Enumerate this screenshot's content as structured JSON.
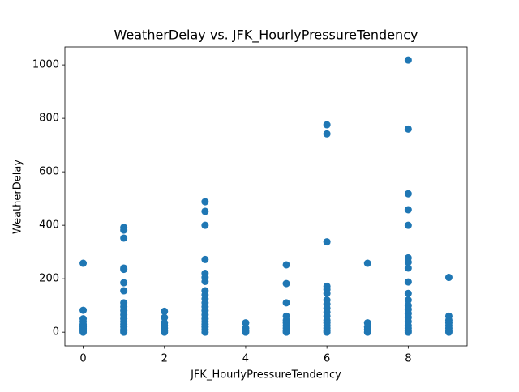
{
  "chart_data": {
    "type": "scatter",
    "title": "WeatherDelay vs. JFK_HourlyPressureTendency",
    "xlabel": "JFK_HourlyPressureTendency",
    "ylabel": "WeatherDelay",
    "color": "#1f77b4",
    "x": [
      0,
      0,
      0,
      0,
      0,
      0,
      0,
      0,
      0,
      0,
      0,
      1,
      1,
      1,
      1,
      1,
      1,
      1,
      1,
      1,
      1,
      1,
      1,
      1,
      1,
      1,
      1,
      1,
      1,
      2,
      2,
      2,
      2,
      2,
      2,
      2,
      3,
      3,
      3,
      3,
      3,
      3,
      3,
      3,
      3,
      3,
      3,
      3,
      3,
      3,
      3,
      3,
      3,
      3,
      3,
      3,
      4,
      4,
      4,
      4,
      5,
      5,
      5,
      5,
      5,
      5,
      5,
      5,
      5,
      5,
      6,
      6,
      6,
      6,
      6,
      6,
      6,
      6,
      6,
      6,
      6,
      6,
      6,
      6,
      6,
      6,
      6,
      7,
      7,
      7,
      7,
      7,
      8,
      8,
      8,
      8,
      8,
      8,
      8,
      8,
      8,
      8,
      8,
      8,
      8,
      8,
      8,
      8,
      8,
      8,
      8,
      8,
      9,
      9,
      9,
      9,
      9,
      9,
      9,
      9
    ],
    "y": [
      258,
      82,
      50,
      40,
      30,
      25,
      20,
      15,
      10,
      5,
      0,
      392,
      382,
      352,
      240,
      235,
      185,
      155,
      110,
      95,
      80,
      65,
      50,
      40,
      30,
      20,
      10,
      5,
      0,
      78,
      55,
      35,
      25,
      15,
      5,
      0,
      488,
      452,
      400,
      272,
      220,
      205,
      190,
      155,
      140,
      125,
      110,
      95,
      80,
      65,
      50,
      40,
      30,
      20,
      10,
      0,
      35,
      15,
      5,
      0,
      252,
      182,
      110,
      60,
      45,
      35,
      25,
      15,
      5,
      0,
      776,
      742,
      338,
      172,
      160,
      145,
      120,
      105,
      90,
      75,
      60,
      45,
      35,
      25,
      15,
      5,
      0,
      258,
      35,
      20,
      10,
      0,
      1018,
      760,
      518,
      458,
      400,
      278,
      262,
      240,
      188,
      145,
      120,
      100,
      85,
      70,
      55,
      40,
      25,
      15,
      5,
      0,
      205,
      60,
      45,
      35,
      25,
      15,
      5,
      0
    ],
    "xlim": [
      -0.45,
      9.45
    ],
    "xticks": [
      0,
      2,
      4,
      6,
      8
    ],
    "ylim": [
      -51,
      1067
    ],
    "yticks": [
      0,
      200,
      400,
      600,
      800,
      1000
    ]
  }
}
